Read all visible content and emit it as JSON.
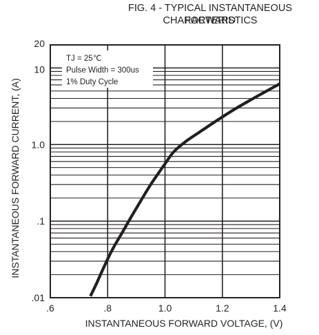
{
  "chart_data": {
    "type": "line",
    "title_lines": [
      "FIG. 4 - TYPICAL INSTANTANEOUS FORWARD",
      "CHARACTERISTICS"
    ],
    "xlabel": "INSTANTANEOUS FORWARD VOLTAGE, (V)",
    "ylabel": "INSTANTANEOUS FORWARD CURRENT, (A)",
    "x_scale": "linear",
    "y_scale": "log",
    "xlim": [
      0.6,
      1.4
    ],
    "ylim": [
      0.01,
      20
    ],
    "x_ticks": [
      {
        "value": 0.6,
        "label": ".6"
      },
      {
        "value": 0.8,
        "label": ".8"
      },
      {
        "value": 1.0,
        "label": "1.0"
      },
      {
        "value": 1.2,
        "label": "1.2"
      },
      {
        "value": 1.4,
        "label": "1.4"
      }
    ],
    "y_ticks": [
      {
        "value": 0.01,
        "label": ".01"
      },
      {
        "value": 0.1,
        "label": ".1"
      },
      {
        "value": 1.0,
        "label": "1.0"
      },
      {
        "value": 10,
        "label": "10"
      },
      {
        "value": 20,
        "label": "20"
      }
    ],
    "grid": true,
    "legend_placement": "top-left",
    "annotations": [
      "TJ = 25℃",
      "Pulse Width = 300us",
      "1% Duty Cycle"
    ],
    "series": [
      {
        "x": [
          0.74,
          0.76,
          0.78,
          0.8,
          0.82,
          0.85,
          0.88,
          0.91,
          0.95,
          1.0,
          1.03,
          1.07,
          1.12,
          1.18,
          1.24,
          1.3,
          1.35,
          1.4
        ],
        "y": [
          0.0105,
          0.015,
          0.022,
          0.032,
          0.045,
          0.07,
          0.11,
          0.17,
          0.3,
          0.56,
          0.8,
          1.08,
          1.45,
          2.05,
          2.85,
          3.85,
          4.9,
          6.2
        ]
      }
    ],
    "colors": {
      "line": "#231f20",
      "grid": "#231f20",
      "background": "#ffffff"
    }
  }
}
